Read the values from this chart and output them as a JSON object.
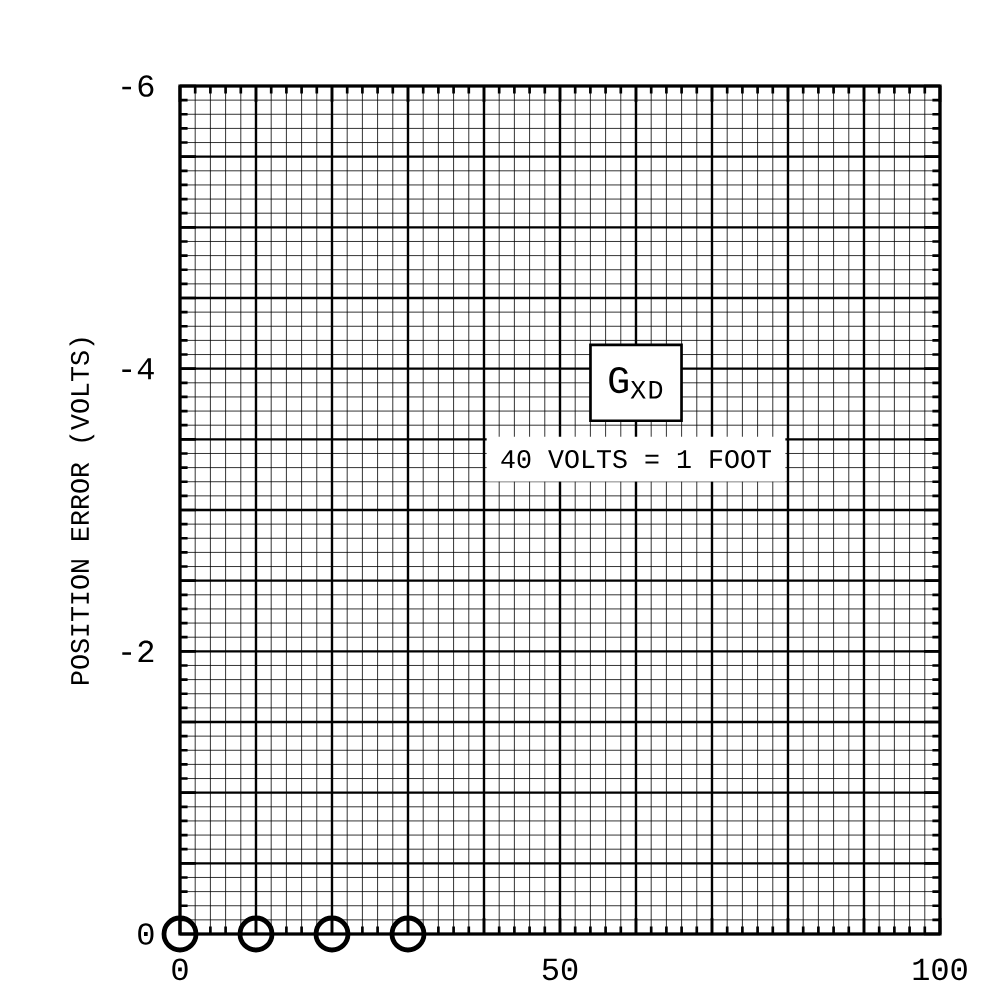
{
  "chart_data": {
    "type": "scatter",
    "ylabel": "POSITION ERROR (VOLTS)",
    "annotations": [
      "G$_{X}$$_{D}$",
      "40 VOLTS = 1 FOOT"
    ],
    "x": [
      0,
      10,
      20,
      30
    ],
    "values": [
      0,
      0,
      0,
      0
    ],
    "color": "#000000",
    "marker": "circle",
    "xlim": [
      0,
      100
    ],
    "ylim": [
      0,
      -6
    ],
    "xticks": [
      0,
      {
        "value": 10,
        "label": null
      },
      {
        "value": 20,
        "label": null
      },
      {
        "value": 30,
        "label": null
      },
      {
        "value": 40,
        "label": null
      },
      50,
      {
        "value": 60,
        "label": null
      },
      {
        "value": 70,
        "label": null
      },
      {
        "value": 80,
        "label": null
      },
      {
        "value": 90,
        "label": null
      },
      100
    ],
    "yticks": [
      0,
      {
        "value": -0.5,
        "label": null
      },
      {
        "value": -1,
        "label": null
      },
      {
        "value": -1.5,
        "label": null
      },
      -2,
      {
        "value": -2.5,
        "label": null
      },
      {
        "value": -3,
        "label": null
      },
      {
        "value": -3.5,
        "label": null
      },
      -4,
      {
        "value": -4.5,
        "label": null
      },
      {
        "value": -5,
        "label": null
      },
      {
        "value": -5.5,
        "label": null
      },
      -6
    ],
    "grid": true
  }
}
